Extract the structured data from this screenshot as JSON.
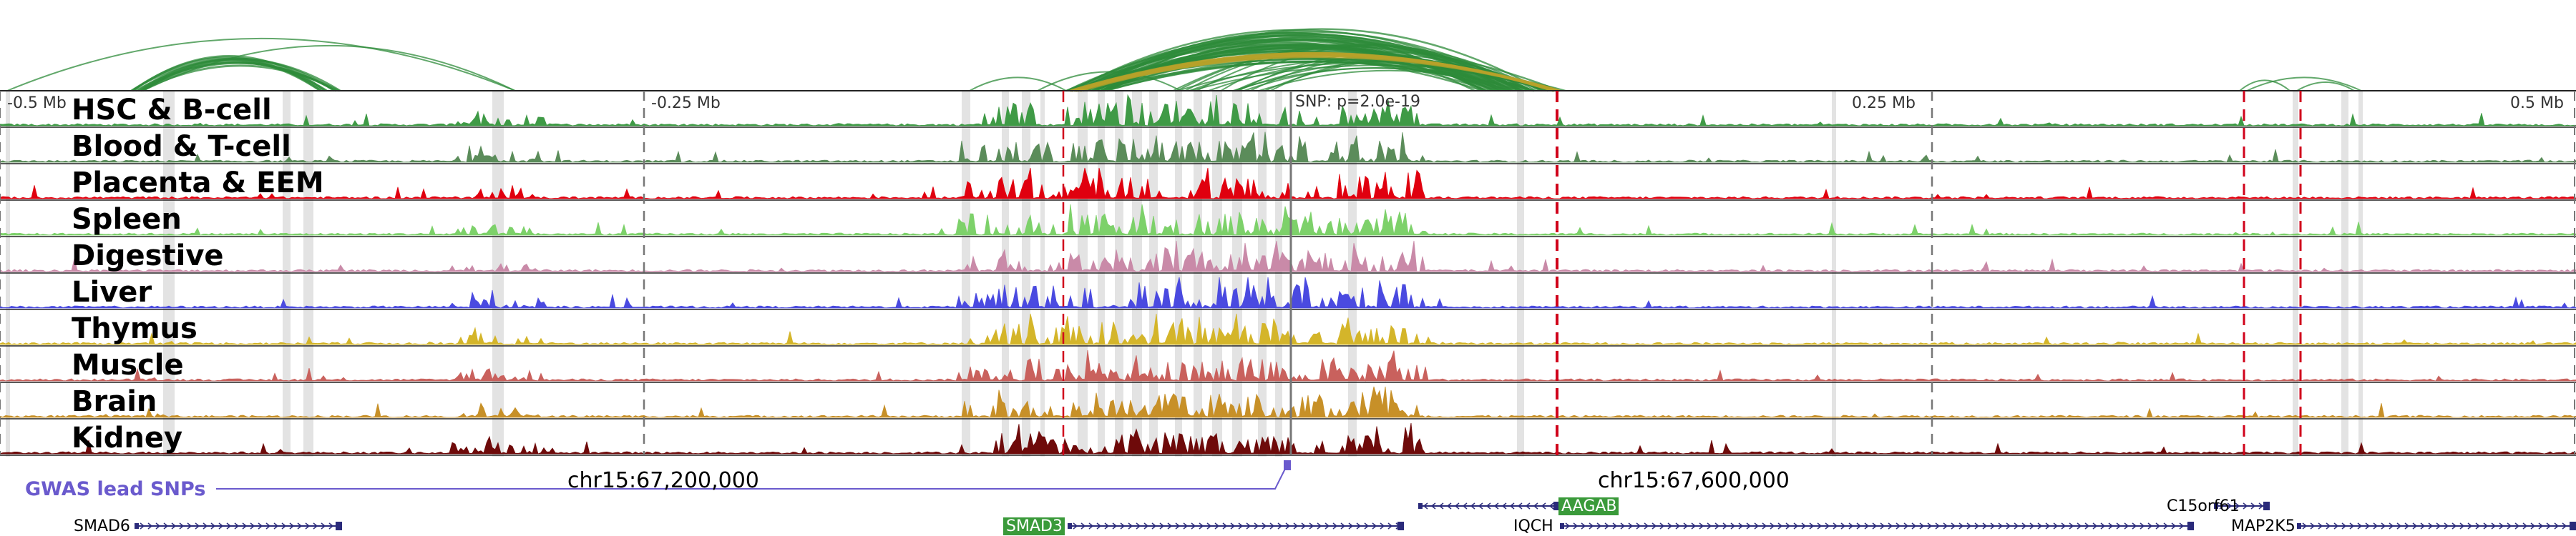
{
  "colors": {
    "loop_default": "#2e8b3a",
    "loop_highlight": "#b8a22a",
    "snp_line": "#d0021b",
    "gwas": "#6a5acd",
    "gene": "#2a2a7a",
    "gene_box": "#3a9a3a",
    "axis": "#333333",
    "highlight_band": "#d9d9d9"
  },
  "axis_ticks": [
    {
      "label": "-0.5 Mb"
    },
    {
      "label": "-0.25 Mb"
    },
    {
      "label": "0.25 Mb"
    },
    {
      "label": "0.5 Mb"
    }
  ],
  "snp_annotation": "SNP: p=2.0e-19",
  "tracks": [
    {
      "label": "HSC & B-cell",
      "color": "#3f9a46"
    },
    {
      "label": "Blood & T-cell",
      "color": "#5b8c5a"
    },
    {
      "label": "Placenta & EEM",
      "color": "#e0000f"
    },
    {
      "label": "Spleen",
      "color": "#7dd16a"
    },
    {
      "label": "Digestive",
      "color": "#c98aa8"
    },
    {
      "label": "Liver",
      "color": "#4a4ae0"
    },
    {
      "label": "Thymus",
      "color": "#d4b52a"
    },
    {
      "label": "Muscle",
      "color": "#c9615d"
    },
    {
      "label": "Brain",
      "color": "#c79028"
    },
    {
      "label": "Kidney",
      "color": "#6e0a0a"
    }
  ],
  "coordinates": [
    {
      "label": "chr15:67,200,000"
    },
    {
      "label": "chr15:67,600,000"
    }
  ],
  "gwas_label": "GWAS lead SNPs",
  "genes": [
    {
      "name": "SMAD6",
      "boxed": false
    },
    {
      "name": "SMAD3",
      "boxed": true
    },
    {
      "name": "AAGAB",
      "boxed": true
    },
    {
      "name": "IQCH",
      "boxed": false
    },
    {
      "name": "C15orf61",
      "boxed": false
    },
    {
      "name": "MAP2K5",
      "boxed": false
    }
  ]
}
